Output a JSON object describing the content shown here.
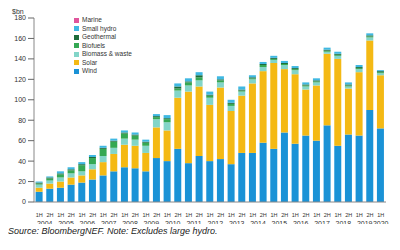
{
  "chart_data": {
    "type": "bar",
    "stacked": true,
    "grid": false,
    "legend": "upper left",
    "y_label": "$bn",
    "footnote": "Source: BloombergNEF. Note: Excludes large hydro.",
    "categories": [
      "1H",
      "2H",
      "1H",
      "2H",
      "1H",
      "2H",
      "1H",
      "2H",
      "1H",
      "2H",
      "1H",
      "2H",
      "1H",
      "2H",
      "1H",
      "2H",
      "1H",
      "2H",
      "1H",
      "2H",
      "1H",
      "2H",
      "1H",
      "2H",
      "1H",
      "2H",
      "1H",
      "2H",
      "1H",
      "2H",
      "1H",
      "2H",
      "1H"
    ],
    "category_groups": [
      "2004",
      "2005",
      "2006",
      "2007",
      "2008",
      "2009",
      "2010",
      "2011",
      "2012",
      "2013",
      "2014",
      "2015",
      "2016",
      "2017",
      "2018",
      "2019",
      "2020"
    ],
    "ylim": [
      0,
      180
    ],
    "yticks": [
      0,
      20,
      40,
      60,
      80,
      100,
      120,
      140,
      160,
      180
    ],
    "series": [
      {
        "name": "Wind",
        "color": "#1a92d6",
        "values": [
          10,
          13,
          14,
          17,
          19,
          22,
          26,
          30,
          34,
          33,
          30,
          43,
          40,
          52,
          38,
          45,
          40,
          42,
          37,
          48,
          48,
          58,
          52,
          68,
          57,
          65,
          60,
          75,
          55,
          66,
          65,
          90,
          72
        ]
      },
      {
        "name": "Solar",
        "color": "#f4b914",
        "values": [
          4,
          5,
          6,
          7,
          7,
          10,
          13,
          17,
          22,
          22,
          18,
          30,
          30,
          50,
          70,
          68,
          55,
          70,
          52,
          56,
          68,
          70,
          84,
          62,
          68,
          45,
          54,
          70,
          85,
          45,
          62,
          68,
          52
        ]
      },
      {
        "name": "Biomass & waste",
        "color": "#82d5c8",
        "values": [
          3,
          3,
          4,
          4,
          4,
          5,
          6,
          6,
          6,
          6,
          7,
          8,
          8,
          7,
          6,
          6,
          7,
          5,
          5,
          4,
          4,
          4,
          3,
          4,
          4,
          3,
          3,
          2,
          3,
          2,
          3,
          3,
          2
        ]
      },
      {
        "name": "Biofuels",
        "color": "#34a853",
        "values": [
          1,
          2,
          3,
          3,
          6,
          6,
          7,
          6,
          5,
          4,
          3,
          2,
          3,
          2,
          3,
          3,
          2,
          2,
          2,
          1,
          1,
          2,
          1,
          1,
          1,
          1,
          1,
          1,
          1,
          1,
          1,
          1,
          1
        ]
      },
      {
        "name": "Geothermal",
        "color": "#1d6b3a",
        "values": [
          1,
          1,
          1,
          1,
          1,
          1,
          1,
          1,
          1,
          1,
          1,
          1,
          1,
          2,
          1,
          2,
          1,
          1,
          1,
          1,
          1,
          1,
          1,
          1,
          1,
          1,
          1,
          1,
          1,
          1,
          1,
          1,
          1
        ]
      },
      {
        "name": "Small hydro",
        "color": "#3fb8e2",
        "values": [
          1,
          1,
          2,
          2,
          2,
          2,
          2,
          2,
          2,
          2,
          2,
          2,
          3,
          3,
          3,
          3,
          3,
          3,
          3,
          3,
          2,
          2,
          2,
          2,
          2,
          2,
          2,
          2,
          2,
          2,
          2,
          2,
          1
        ]
      },
      {
        "name": "Marine",
        "color": "#e0559c",
        "values": [
          0,
          0,
          0,
          0,
          0,
          0,
          0,
          0,
          0,
          0,
          0,
          0,
          0,
          0,
          0,
          0,
          0,
          0,
          0,
          0,
          0,
          0,
          0,
          0,
          0,
          0,
          0,
          0,
          0,
          0,
          0,
          0,
          0
        ]
      }
    ]
  }
}
